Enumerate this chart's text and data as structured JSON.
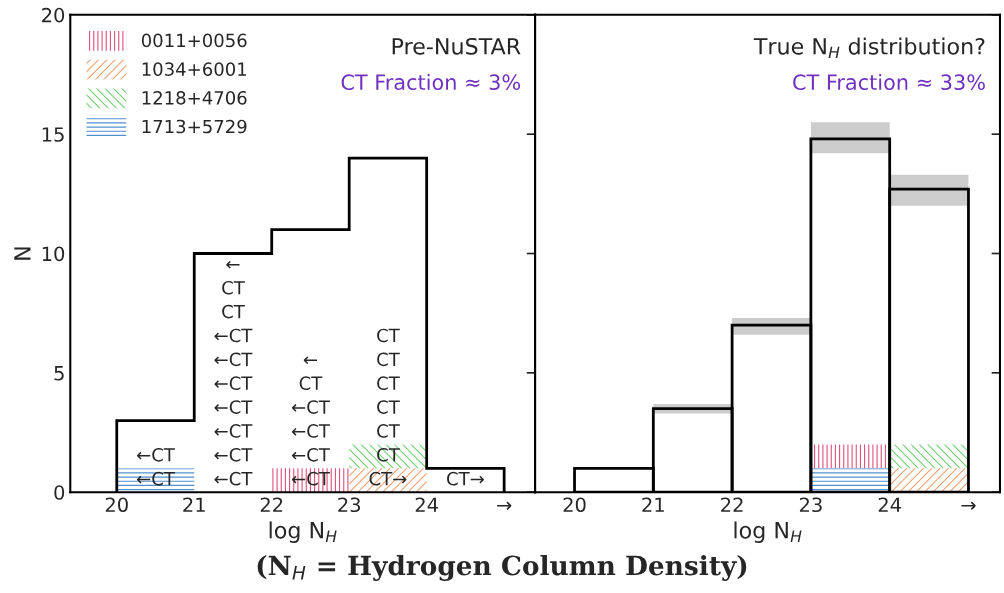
{
  "chart_data": [
    {
      "type": "histogram",
      "title": "Pre-NuSTAR",
      "subtitle": "CT Fraction ≈ 3%",
      "xlabel": "log N$_{H}$",
      "ylabel": "N",
      "bins": [
        20,
        21,
        22,
        23,
        24,
        25
      ],
      "values": [
        3,
        10,
        11,
        14,
        1
      ],
      "color": "#000000",
      "series": [
        {
          "type": "bar",
          "name": "0011+0056",
          "color": "#e0507a",
          "x": [
            22.5
          ],
          "values": [
            1
          ],
          "base": [
            0
          ]
        },
        {
          "type": "bar",
          "name": "1034+6001",
          "color": "#f0a070",
          "x": [
            23.5
          ],
          "values": [
            1
          ],
          "base": [
            0
          ]
        },
        {
          "type": "bar",
          "name": "1218+4706",
          "color": "#70d070",
          "x": [
            23.5
          ],
          "values": [
            1
          ],
          "base": [
            1
          ]
        },
        {
          "type": "bar",
          "name": "1713+5729",
          "color": "#5090d0",
          "x": [
            20.5
          ],
          "values": [
            1
          ],
          "base": [
            0
          ]
        }
      ],
      "xlim": [
        19.4,
        25.4
      ],
      "xticks": [
        20,
        21,
        22,
        23,
        24,
        {
          "value": 25,
          "label": "→"
        }
      ],
      "ylim": [
        0,
        20
      ],
      "yticks": [
        0,
        5,
        10,
        15,
        20
      ],
      "legend": "top left",
      "annotations": [
        "←CT",
        "←CT",
        "←",
        "CT",
        "CT",
        "←CT",
        "←CT",
        "←CT",
        "←CT",
        "←CT",
        "←CT",
        "←CT",
        "←",
        "CT",
        "←CT",
        "←CT",
        "←CT",
        "←CT",
        "CT",
        "CT",
        "CT",
        "CT",
        "CT",
        "CT",
        "CT→",
        "CT→"
      ]
    },
    {
      "type": "bar",
      "title": "True N$_{H}$ distribution?",
      "subtitle": "CT Fraction ≈ 33%",
      "xlabel": "log N$_{H}$",
      "x": [
        20.5,
        21.5,
        22.5,
        23.5,
        24.5
      ],
      "values": [
        1,
        3.5,
        7,
        14.8,
        12.7
      ],
      "color": "#000000",
      "errors": [
        null,
        [
          3.3,
          3.7
        ],
        [
          6.6,
          7.3
        ],
        [
          14.2,
          15.5
        ],
        [
          12.0,
          13.3
        ]
      ],
      "series": [
        {
          "type": "bar",
          "color": "#e0507a",
          "x": [
            23.5
          ],
          "values": [
            1
          ],
          "base": [
            1
          ]
        },
        {
          "type": "bar",
          "color": "#f0a070",
          "x": [
            24.5
          ],
          "values": [
            1
          ],
          "base": [
            0
          ]
        },
        {
          "type": "bar",
          "color": "#70d070",
          "x": [
            24.5
          ],
          "values": [
            1
          ],
          "base": [
            1
          ]
        },
        {
          "type": "bar",
          "color": "#5090d0",
          "x": [
            23.5
          ],
          "values": [
            1
          ],
          "base": [
            0
          ]
        }
      ],
      "xlim": [
        19.5,
        25.4
      ],
      "xticks": [
        20,
        21,
        22,
        23,
        24,
        {
          "value": 25,
          "label": "→"
        }
      ],
      "ylim": [
        0,
        20
      ],
      "yticks": [
        0,
        5,
        10,
        15,
        20
      ],
      "tick_labels": "x",
      "annotations": [
        "(N$_{H}$ = Hydrogen Column Density)"
      ]
    }
  ]
}
